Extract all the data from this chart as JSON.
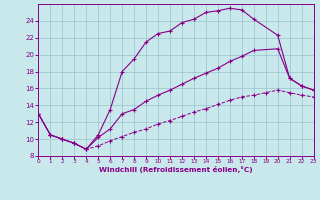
{
  "xlabel": "Windchill (Refroidissement éolien,°C)",
  "bg_color": "#c8e8ec",
  "grid_color": "#98c4cc",
  "line_color": "#880088",
  "xlim": [
    0,
    23
  ],
  "ylim": [
    8,
    26
  ],
  "xticks": [
    0,
    1,
    2,
    3,
    4,
    5,
    6,
    7,
    8,
    9,
    10,
    11,
    12,
    13,
    14,
    15,
    16,
    17,
    18,
    19,
    20,
    21,
    22,
    23
  ],
  "yticks": [
    8,
    10,
    12,
    14,
    16,
    18,
    20,
    22,
    24
  ],
  "curve1_x": [
    0,
    1,
    2,
    3,
    4,
    5,
    6,
    7,
    8,
    9,
    10,
    11,
    12,
    13,
    14,
    15,
    16,
    17,
    18,
    20,
    21,
    22,
    23
  ],
  "curve1_y": [
    13,
    10.5,
    10,
    9.5,
    8.8,
    10.5,
    13.5,
    18.0,
    19.5,
    21.5,
    22.5,
    22.8,
    23.8,
    24.2,
    25.0,
    25.2,
    25.5,
    25.3,
    24.2,
    22.3,
    17.2,
    16.3,
    15.8
  ],
  "curve2_x": [
    0,
    1,
    2,
    3,
    4,
    5,
    6,
    7,
    8,
    9,
    10,
    11,
    12,
    13,
    14,
    15,
    16,
    17,
    18,
    20,
    21,
    22,
    23
  ],
  "curve2_y": [
    13,
    10.5,
    10,
    9.5,
    8.8,
    10.2,
    11.2,
    13.0,
    13.5,
    14.5,
    15.2,
    15.8,
    16.5,
    17.2,
    17.8,
    18.4,
    19.2,
    19.8,
    20.5,
    20.7,
    17.2,
    16.3,
    15.8
  ],
  "curve3_x": [
    0,
    1,
    2,
    3,
    4,
    5,
    6,
    7,
    8,
    9,
    10,
    11,
    12,
    13,
    14,
    15,
    16,
    17,
    18,
    19,
    20,
    21,
    22,
    23
  ],
  "curve3_y": [
    13,
    10.5,
    10,
    9.5,
    8.8,
    9.2,
    9.8,
    10.3,
    10.8,
    11.2,
    11.8,
    12.2,
    12.7,
    13.2,
    13.6,
    14.1,
    14.6,
    15.0,
    15.2,
    15.5,
    15.8,
    15.5,
    15.2,
    15.0
  ]
}
